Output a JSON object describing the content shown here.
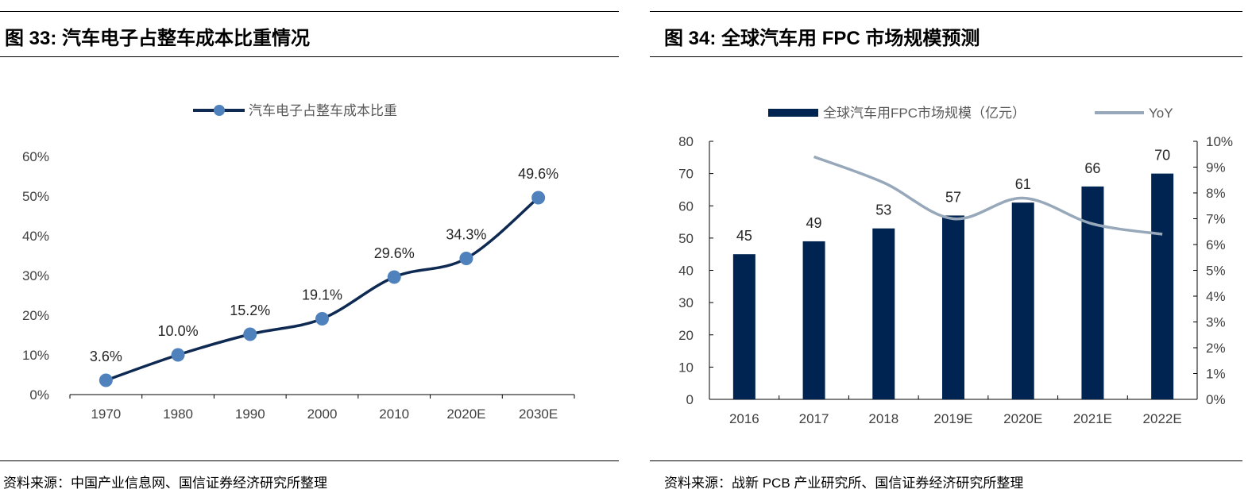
{
  "figures": [
    {
      "title": "图 33:  汽车电子占整车成本比重情况",
      "source": "资料来源：中国产业信息网、国信证券经济研究所整理"
    },
    {
      "title": "图 34:  全球汽车用 FPC 市场规模预测",
      "source": "资料来源：战新 PCB 产业研究所、国信证券经济研究所整理"
    }
  ],
  "chart_data": [
    {
      "type": "line",
      "categories": [
        "1970",
        "1980",
        "1990",
        "2000",
        "2010",
        "2020E",
        "2030E"
      ],
      "series": [
        {
          "name": "汽车电子占整车成本比重",
          "values": [
            3.6,
            10.0,
            15.2,
            19.1,
            29.6,
            34.3,
            49.6
          ],
          "data_labels": [
            "3.6%",
            "10.0%",
            "15.2%",
            "19.1%",
            "29.6%",
            "34.3%",
            "49.6%"
          ],
          "color": "#0e2a52",
          "marker_color": "#4f81bd"
        }
      ],
      "yticks": [
        "0%",
        "10%",
        "20%",
        "30%",
        "40%",
        "50%",
        "60%"
      ],
      "ylim": [
        0,
        60
      ],
      "legend": "top",
      "grid": false,
      "smooth": true
    },
    {
      "type": "bar+line",
      "categories": [
        "2016",
        "2017",
        "2018",
        "2019E",
        "2020E",
        "2021E",
        "2022E"
      ],
      "series": [
        {
          "name": "全球汽车用FPC市场规模（亿元）",
          "type": "bar",
          "axis": "left",
          "values": [
            45,
            49,
            53,
            57,
            61,
            66,
            70
          ],
          "color": "#002451"
        },
        {
          "name": "YoY",
          "type": "line",
          "axis": "right",
          "values": [
            null,
            9.4,
            8.4,
            7.0,
            7.8,
            6.8,
            6.4
          ],
          "color": "#97a8ba"
        }
      ],
      "yticks_left": [
        "0",
        "10",
        "20",
        "30",
        "40",
        "50",
        "60",
        "70",
        "80"
      ],
      "ylim_left": [
        0,
        80
      ],
      "yticks_right": [
        "0%",
        "1%",
        "2%",
        "3%",
        "4%",
        "5%",
        "6%",
        "7%",
        "8%",
        "9%",
        "10%"
      ],
      "ylim_right": [
        0,
        10
      ],
      "legend": "top",
      "grid": false
    }
  ]
}
